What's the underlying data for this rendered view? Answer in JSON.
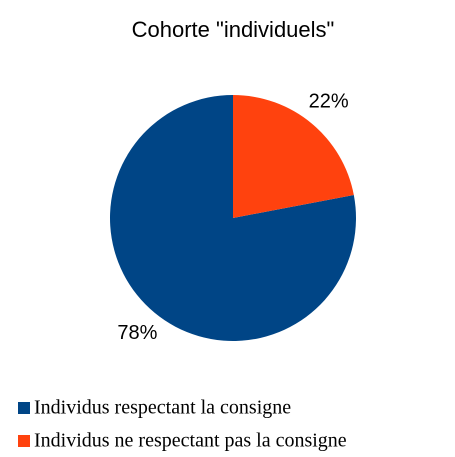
{
  "chart_data": {
    "type": "pie",
    "title": "Cohorte \"individuels\"",
    "categories": [
      "Individus respectant la consigne",
      "Individus ne respectant pas la consigne"
    ],
    "values": [
      78,
      22
    ],
    "value_labels": [
      "78%",
      "22%"
    ],
    "colors": [
      "#004586",
      "#ff420e"
    ]
  }
}
